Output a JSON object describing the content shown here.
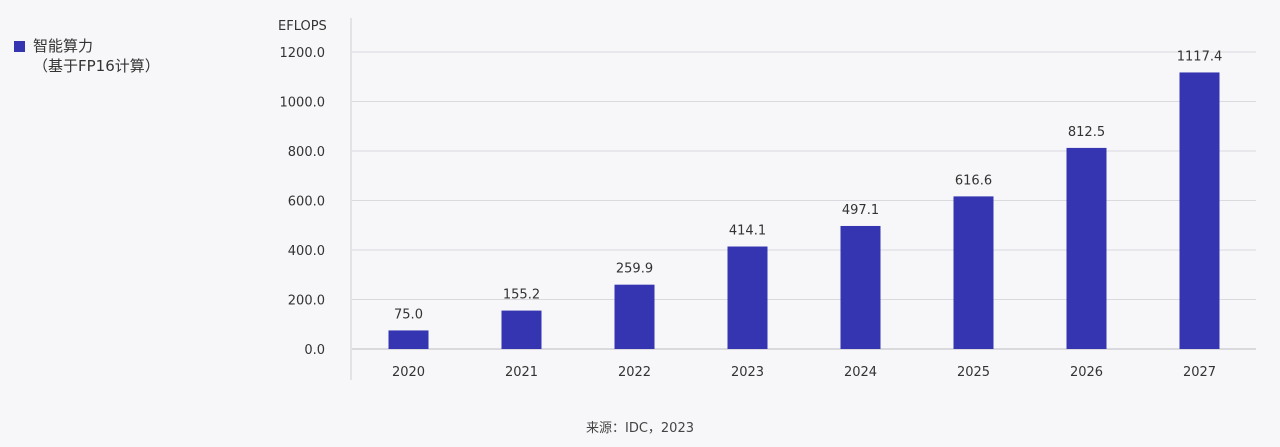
{
  "legend": {
    "series_name": "智能算力\n（基于FP16计算）",
    "color": "#3535b2"
  },
  "source": "来源：IDC，2023",
  "chart_data": {
    "type": "bar",
    "unit_label": "EFLOPS",
    "categories": [
      "2020",
      "2021",
      "2022",
      "2023",
      "2024",
      "2025",
      "2026",
      "2027"
    ],
    "series": [
      {
        "name": "智能算力（基于FP16计算）",
        "values": [
          75.0,
          155.2,
          259.9,
          414.1,
          497.1,
          616.6,
          812.5,
          1117.4
        ],
        "labels": [
          "75.0",
          "155.2",
          "259.9",
          "414.1",
          "497.1",
          "616.6",
          "812.5",
          "1117.4"
        ],
        "color": "#3535b2"
      }
    ],
    "yticks": [
      "0.0",
      "200.0",
      "400.0",
      "600.0",
      "800.0",
      "1000.0",
      "1200.0"
    ],
    "ylim": [
      0,
      1200
    ],
    "grid": true,
    "legend_position": "top-left"
  }
}
